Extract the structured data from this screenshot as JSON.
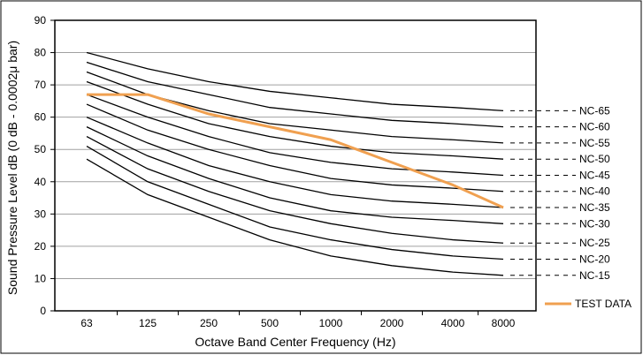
{
  "chart_data": {
    "type": "line",
    "xlabel": "Octave Band Center Frequency (Hz)",
    "ylabel": "Sound Pressure Level dB (0 dB - 0.0002μ bar)",
    "categories": [
      "63",
      "125",
      "250",
      "500",
      "1000",
      "2000",
      "4000",
      "8000"
    ],
    "ylim": [
      0,
      90
    ],
    "yticks": [
      0,
      10,
      20,
      30,
      40,
      50,
      60,
      70,
      80,
      90
    ],
    "grid": "horizontal",
    "legend_position": "right",
    "nc_series": [
      {
        "name": "NC-65",
        "values": [
          80,
          75,
          71,
          68,
          66,
          64,
          63,
          62
        ]
      },
      {
        "name": "NC-60",
        "values": [
          77,
          71,
          67,
          63,
          61,
          59,
          58,
          57
        ]
      },
      {
        "name": "NC-55",
        "values": [
          74,
          67,
          62,
          58,
          56,
          54,
          53,
          52
        ]
      },
      {
        "name": "NC-50",
        "values": [
          71,
          64,
          58,
          54,
          51,
          49,
          48,
          47
        ]
      },
      {
        "name": "NC-45",
        "values": [
          67,
          60,
          54,
          49,
          46,
          44,
          43,
          42
        ]
      },
      {
        "name": "NC-40",
        "values": [
          64,
          56,
          50,
          45,
          41,
          39,
          38,
          37
        ]
      },
      {
        "name": "NC-35",
        "values": [
          60,
          52,
          45,
          40,
          36,
          34,
          33,
          32
        ]
      },
      {
        "name": "NC-30",
        "values": [
          57,
          48,
          41,
          35,
          31,
          29,
          28,
          27
        ]
      },
      {
        "name": "NC-25",
        "values": [
          54,
          44,
          37,
          31,
          27,
          24,
          22,
          21
        ]
      },
      {
        "name": "NC-20",
        "values": [
          51,
          40,
          33,
          26,
          22,
          19,
          17,
          16
        ]
      },
      {
        "name": "NC-15",
        "values": [
          47,
          36,
          29,
          22,
          17,
          14,
          12,
          11
        ]
      }
    ],
    "test_series": {
      "name": "TEST DATA",
      "values": [
        67,
        67,
        61,
        57,
        53,
        46,
        39,
        32
      ]
    },
    "colors": {
      "nc_line": "#000000",
      "test_line": "#f0a050",
      "grid": "#a0a0a0",
      "frame": "#000000"
    }
  }
}
